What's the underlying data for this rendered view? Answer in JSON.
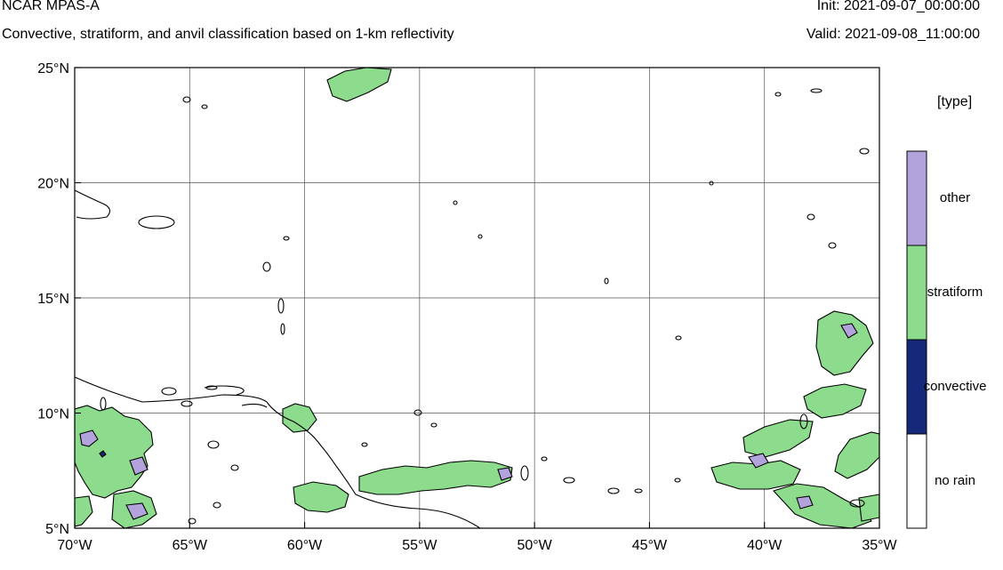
{
  "header": {
    "model": "NCAR MPAS-A",
    "description": "Convective, stratiform, and anvil classification based on 1-km reflectivity",
    "init": "Init: 2021-09-07_00:00:00",
    "valid": "Valid: 2021-09-08_11:00:00"
  },
  "map": {
    "lon_range": [
      -70,
      -35
    ],
    "lat_range": [
      5,
      25
    ],
    "lon_ticks": [
      {
        "value": -70,
        "label": "70°W"
      },
      {
        "value": -65,
        "label": "65°W"
      },
      {
        "value": -60,
        "label": "60°W"
      },
      {
        "value": -55,
        "label": "55°W"
      },
      {
        "value": -50,
        "label": "50°W"
      },
      {
        "value": -45,
        "label": "45°W"
      },
      {
        "value": -40,
        "label": "40°W"
      },
      {
        "value": -35,
        "label": "35°W"
      }
    ],
    "lat_ticks": [
      {
        "value": 5,
        "label": "5°N"
      },
      {
        "value": 10,
        "label": "10°N"
      },
      {
        "value": 15,
        "label": "15°N"
      },
      {
        "value": 20,
        "label": "20°N"
      },
      {
        "value": 25,
        "label": "25°N"
      }
    ],
    "gridlines": true
  },
  "legend": {
    "title": "[type]",
    "categories": [
      {
        "label": "other",
        "color": "#b3a3dc"
      },
      {
        "label": "stratiform",
        "color": "#8ddc8d"
      },
      {
        "label": "convective",
        "color": "#16287a"
      },
      {
        "label": "no rain",
        "color": "#ffffff"
      }
    ]
  }
}
